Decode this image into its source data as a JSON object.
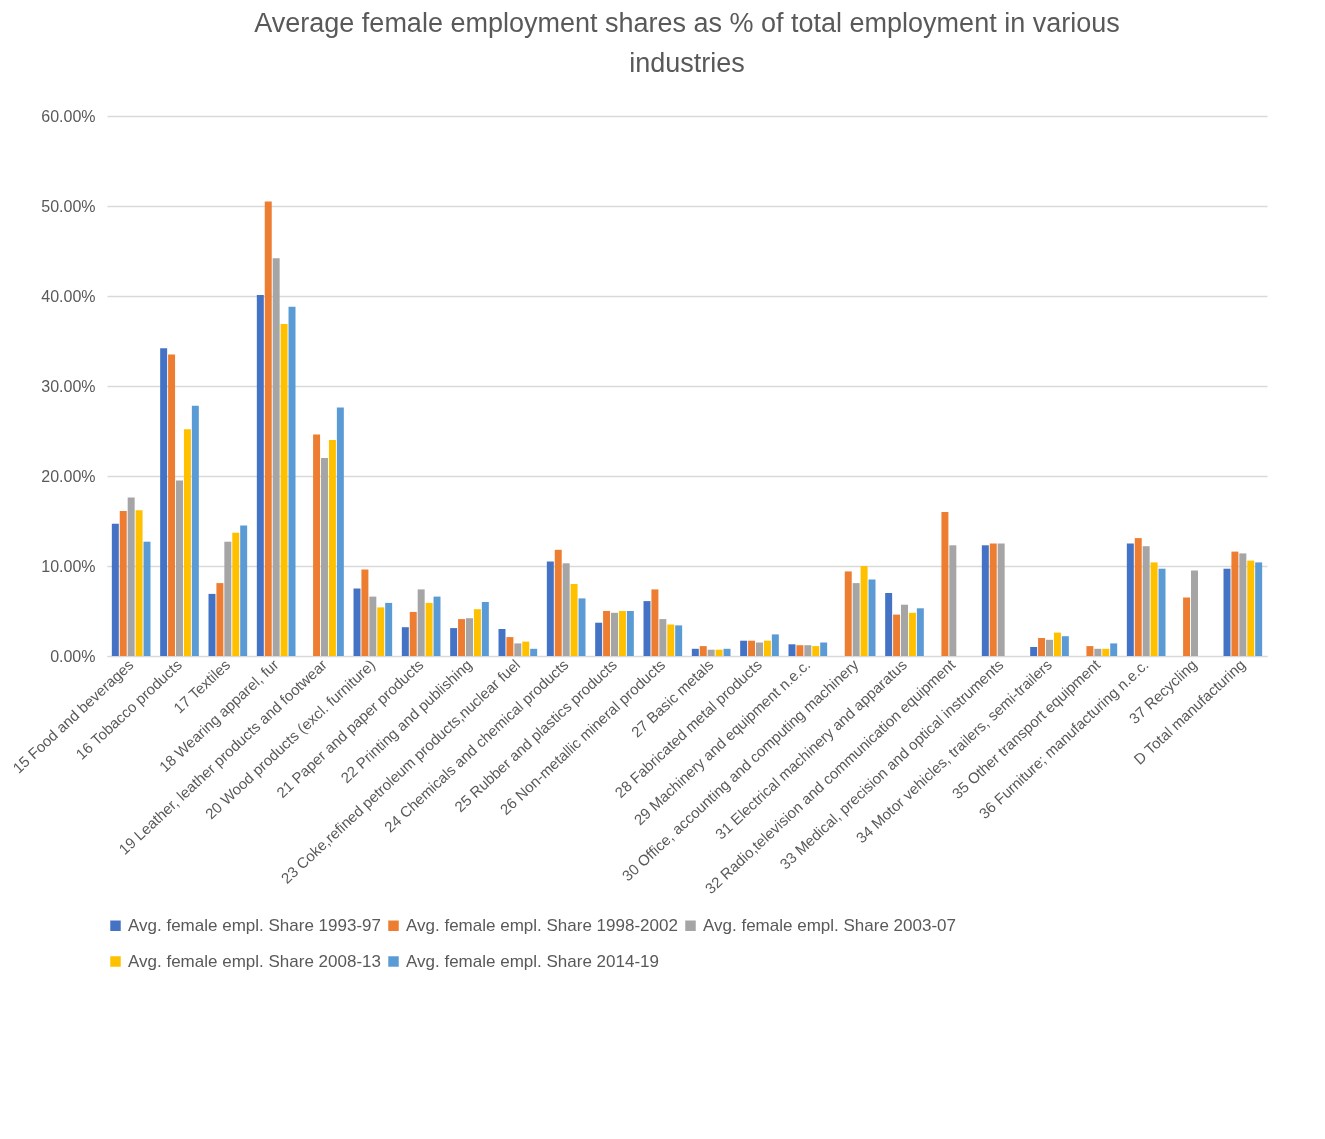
{
  "chart_data": {
    "type": "bar",
    "title": "Average female employment shares as % of total employment in various industries",
    "categories": [
      "15 Food and beverages",
      "16 Tobacco products",
      "17 Textiles",
      "18 Wearing apparel, fur",
      "19 Leather, leather products and footwear",
      "20 Wood products (excl. furniture)",
      "21 Paper and paper products",
      "22 Printing and publishing",
      "23 Coke,refined petroleum products,nuclear fuel",
      "24 Chemicals and chemical products",
      "25 Rubber and plastics products",
      "26 Non-metallic mineral products",
      "27 Basic metals",
      "28 Fabricated metal products",
      "29 Machinery and equipment n.e.c.",
      "30 Office, accounting and computing machinery",
      "31 Electrical machinery and apparatus",
      "32 Radio,television and communication equipment",
      "33 Medical, precision and optical instruments",
      "34 Motor vehicles, trailers, semi-trailers",
      "35 Other transport equipment",
      "36 Furniture; manufacturing n.e.c.",
      "37 Recycling",
      "D Total manufacturing"
    ],
    "series": [
      {
        "name": "Avg. female empl. Share 1993-97",
        "color": "#4472c4",
        "values": [
          14.7,
          34.2,
          6.9,
          40.1,
          null,
          7.5,
          3.2,
          3.1,
          3.0,
          10.5,
          3.7,
          6.1,
          0.8,
          1.7,
          1.3,
          null,
          7.0,
          null,
          12.3,
          1.0,
          null,
          12.5,
          null,
          9.7
        ]
      },
      {
        "name": "Avg. female empl. Share 1998-2002",
        "color": "#ed7d31",
        "values": [
          16.1,
          33.5,
          8.1,
          50.5,
          24.6,
          9.6,
          4.9,
          4.1,
          2.1,
          11.8,
          5.0,
          7.4,
          1.1,
          1.7,
          1.2,
          9.4,
          4.6,
          16.0,
          12.5,
          2.0,
          1.1,
          13.1,
          6.5,
          11.6
        ]
      },
      {
        "name": "Avg. female empl. Share 2003-07",
        "color": "#a5a5a5",
        "values": [
          17.6,
          19.5,
          12.7,
          44.2,
          22.0,
          6.6,
          7.4,
          4.2,
          1.4,
          10.3,
          4.8,
          4.1,
          0.7,
          1.5,
          1.2,
          8.1,
          5.7,
          12.3,
          12.5,
          1.8,
          0.8,
          12.2,
          9.5,
          11.4
        ]
      },
      {
        "name": "Avg. female empl. Share 2008-13",
        "color": "#ffc000",
        "values": [
          16.2,
          25.2,
          13.7,
          36.9,
          24.0,
          5.4,
          5.9,
          5.2,
          1.6,
          8.0,
          5.0,
          3.5,
          0.7,
          1.7,
          1.1,
          10.0,
          4.8,
          null,
          null,
          2.6,
          0.8,
          10.4,
          null,
          10.6
        ]
      },
      {
        "name": "Avg. female empl. Share 2014-19",
        "color": "#5b9bd5",
        "values": [
          12.7,
          27.8,
          14.5,
          38.8,
          27.6,
          5.9,
          6.6,
          6.0,
          0.8,
          6.4,
          5.0,
          3.4,
          0.8,
          2.4,
          1.5,
          8.5,
          5.3,
          null,
          null,
          2.2,
          1.4,
          9.7,
          null,
          10.4
        ]
      }
    ],
    "ylim": [
      0,
      60
    ],
    "yticks": [
      {
        "value": 0,
        "label": "0.00%"
      },
      {
        "value": 10,
        "label": "10.00%"
      },
      {
        "value": 20,
        "label": "20.00%"
      },
      {
        "value": 30,
        "label": "30.00%"
      },
      {
        "value": 40,
        "label": "40.00%"
      },
      {
        "value": 50,
        "label": "50.00%"
      },
      {
        "value": 60,
        "label": "60.00%"
      }
    ],
    "grid": "y",
    "legend": "bottom"
  }
}
